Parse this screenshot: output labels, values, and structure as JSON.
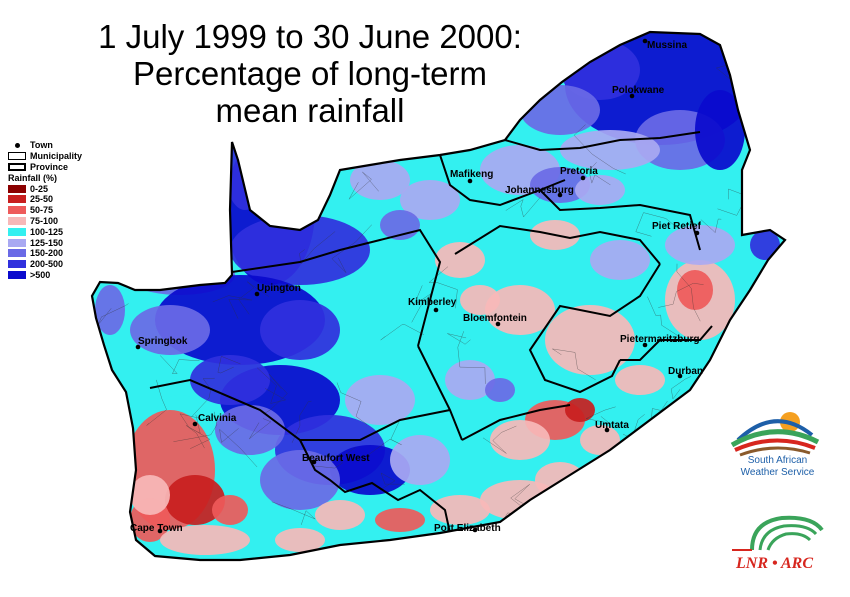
{
  "title": {
    "line1": "1 July 1999 to 30 June 2000:",
    "line2": "Percentage of long-term",
    "line3": "mean rainfall"
  },
  "legend": {
    "town": "Town",
    "municipality": "Municipality",
    "province": "Province",
    "rainfall_heading": "Rainfall (%)",
    "classes": [
      {
        "label": "0-25",
        "color": "#8b0000"
      },
      {
        "label": "25-50",
        "color": "#c81e1e"
      },
      {
        "label": "50-75",
        "color": "#ee5a5a"
      },
      {
        "label": "75-100",
        "color": "#f7b8b8"
      },
      {
        "label": "100-125",
        "color": "#33f0f0"
      },
      {
        "label": "125-150",
        "color": "#a9a9f2"
      },
      {
        "label": "150-200",
        "color": "#6a6ae6"
      },
      {
        "label": "200-500",
        "color": "#3030dd"
      },
      {
        "label": ">500",
        "color": "#0a0acd"
      }
    ]
  },
  "towns": [
    {
      "name": "Mussina"
    },
    {
      "name": "Polokwane"
    },
    {
      "name": "Pretoria"
    },
    {
      "name": "Mafikeng"
    },
    {
      "name": "Johannesburg"
    },
    {
      "name": "Piet Retief"
    },
    {
      "name": "Upington"
    },
    {
      "name": "Kimberley"
    },
    {
      "name": "Bloemfontein"
    },
    {
      "name": "Springbok"
    },
    {
      "name": "Pietermaritzburg"
    },
    {
      "name": "Durban"
    },
    {
      "name": "Calvinia"
    },
    {
      "name": "Umtata"
    },
    {
      "name": "Beaufort West"
    },
    {
      "name": "Cape Town"
    },
    {
      "name": "Port Elizabeth"
    }
  ],
  "logos": {
    "saws_line1": "South African",
    "saws_line2": "Weather Service",
    "arc": "LNR • ARC"
  }
}
